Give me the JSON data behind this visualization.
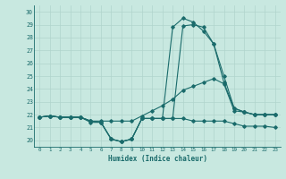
{
  "xlabel": "Humidex (Indice chaleur)",
  "bg_color": "#c8e8e0",
  "grid_color": "#b0d4cc",
  "line_color": "#1a6b6b",
  "xlim": [
    -0.5,
    23.5
  ],
  "ylim": [
    19.5,
    30.5
  ],
  "yticks": [
    20,
    21,
    22,
    23,
    24,
    25,
    26,
    27,
    28,
    29,
    30
  ],
  "xticks": [
    0,
    1,
    2,
    3,
    4,
    5,
    6,
    7,
    8,
    9,
    10,
    11,
    12,
    13,
    14,
    15,
    16,
    17,
    18,
    19,
    20,
    21,
    22,
    23
  ],
  "series": [
    {
      "x": [
        0,
        1,
        2,
        3,
        4,
        5,
        6,
        7,
        8,
        9,
        10,
        11,
        12,
        13,
        14,
        15,
        16,
        17,
        18,
        19,
        20,
        21,
        22,
        23
      ],
      "y": [
        21.8,
        21.9,
        21.8,
        21.8,
        21.8,
        21.5,
        21.4,
        20.1,
        19.9,
        20.1,
        21.7,
        21.7,
        21.7,
        21.7,
        21.7,
        21.5,
        21.5,
        21.5,
        21.5,
        21.3,
        21.1,
        21.1,
        21.1,
        21.0
      ]
    },
    {
      "x": [
        0,
        1,
        2,
        3,
        4,
        5,
        6,
        7,
        8,
        9,
        10,
        11,
        12,
        13,
        14,
        15,
        16,
        17,
        18,
        19,
        20,
        21,
        22,
        23
      ],
      "y": [
        21.8,
        21.9,
        21.8,
        21.8,
        21.8,
        21.5,
        21.5,
        21.5,
        21.5,
        21.5,
        21.9,
        22.3,
        22.7,
        23.2,
        23.9,
        24.2,
        24.5,
        24.8,
        24.4,
        22.3,
        22.2,
        22.0,
        22.0,
        22.0
      ]
    },
    {
      "x": [
        0,
        1,
        2,
        3,
        4,
        5,
        6,
        7,
        8,
        9,
        10,
        11,
        12,
        13,
        14,
        15,
        16,
        17,
        18,
        19,
        20,
        21,
        22,
        23
      ],
      "y": [
        21.8,
        21.9,
        21.8,
        21.8,
        21.8,
        21.4,
        21.4,
        20.1,
        19.9,
        20.1,
        21.7,
        21.7,
        21.7,
        28.8,
        29.5,
        29.2,
        28.5,
        27.5,
        25.0,
        22.5,
        22.2,
        22.0,
        22.0,
        22.0
      ]
    },
    {
      "x": [
        0,
        1,
        2,
        3,
        4,
        5,
        6,
        7,
        8,
        9,
        10,
        11,
        12,
        13,
        14,
        15,
        16,
        17,
        18,
        19,
        20,
        21,
        22,
        23
      ],
      "y": [
        21.8,
        21.9,
        21.8,
        21.8,
        21.8,
        21.5,
        21.4,
        20.1,
        19.9,
        20.1,
        21.7,
        21.7,
        21.7,
        21.7,
        28.9,
        29.0,
        28.8,
        27.5,
        24.5,
        22.5,
        22.2,
        22.0,
        22.0,
        22.0
      ]
    }
  ]
}
